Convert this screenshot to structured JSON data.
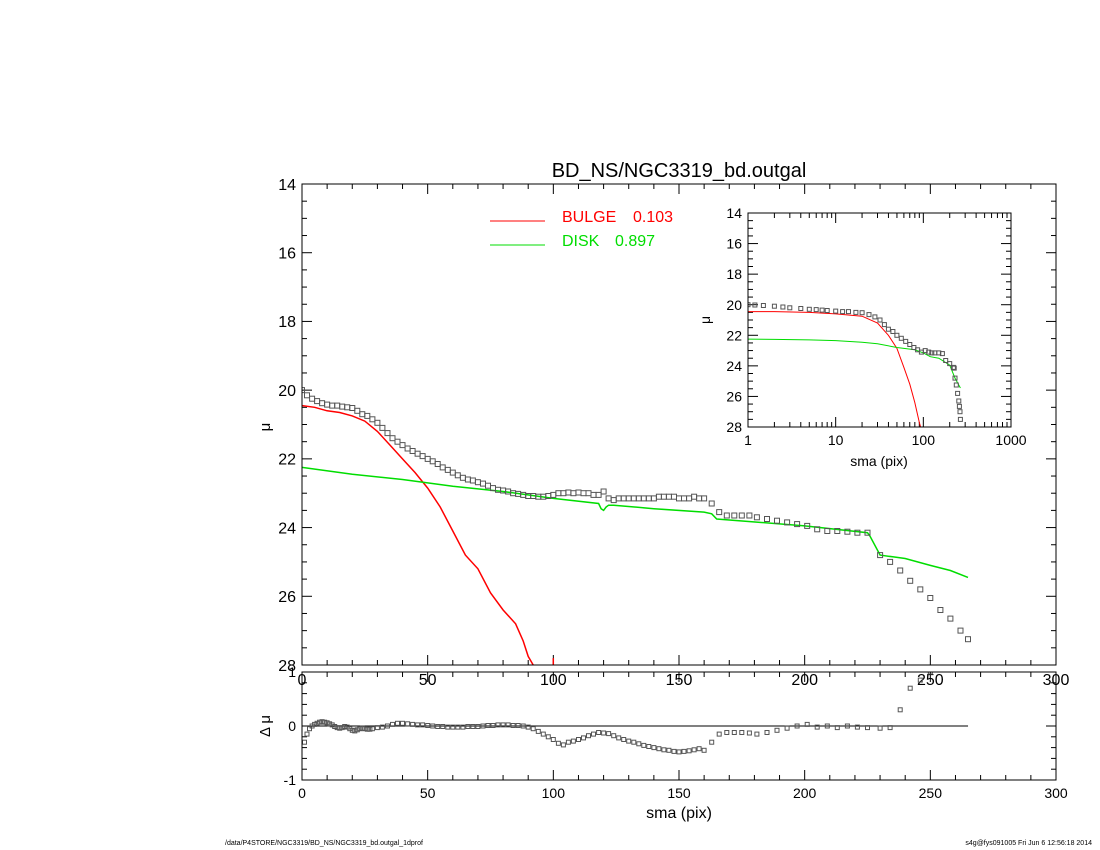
{
  "footer": {
    "left": "/data/P4STORE/NGC3319/BD_NS/NGC3319_bd.outgal_1dprof",
    "right": "s4g@fys091005  Fri Jun  6 12:56:18 2014"
  },
  "chart_data": [
    {
      "type": "line",
      "title": "BD_NS/NGC3319_bd.outgal",
      "xlabel": "sma (pix)",
      "ylabel": "μ",
      "xlim": [
        0,
        300
      ],
      "ylim": [
        28,
        14
      ],
      "x_ticks": [
        0,
        50,
        100,
        150,
        200,
        250,
        300
      ],
      "y_ticks": [
        14,
        16,
        18,
        20,
        22,
        24,
        26,
        28
      ],
      "colors": {
        "bulge": "#ff0000",
        "disk": "#00dd00",
        "data": "#555555"
      },
      "legend": [
        {
          "label": "BULGE",
          "value": "0.103",
          "color": "#ff0000"
        },
        {
          "label": "DISK",
          "value": "0.897",
          "color": "#00dd00"
        }
      ],
      "series": [
        {
          "name": "BULGE",
          "style": "line",
          "x": [
            0,
            5,
            10,
            15,
            20,
            25,
            30,
            35,
            40,
            45,
            50,
            55,
            60,
            65,
            70,
            75,
            80,
            85,
            88,
            90,
            92
          ],
          "y": [
            20.45,
            20.5,
            20.6,
            20.65,
            20.75,
            20.9,
            21.2,
            21.6,
            22.0,
            22.4,
            22.85,
            23.4,
            24.1,
            24.8,
            25.2,
            25.9,
            26.4,
            26.8,
            27.3,
            27.75,
            28.0
          ]
        },
        {
          "name": "BULGE tick",
          "style": "line",
          "x": [
            100,
            100
          ],
          "y": [
            27.8,
            28.0
          ]
        },
        {
          "name": "DISK",
          "style": "line",
          "x": [
            0,
            20,
            40,
            60,
            80,
            100,
            118,
            119,
            120,
            121,
            122,
            124,
            140,
            160,
            163,
            165,
            200,
            225,
            226,
            230,
            235,
            240,
            250,
            258,
            265
          ],
          "y": [
            22.25,
            22.45,
            22.6,
            22.8,
            22.95,
            23.15,
            23.3,
            23.45,
            23.5,
            23.4,
            23.35,
            23.35,
            23.45,
            23.55,
            23.6,
            23.75,
            23.95,
            24.15,
            24.25,
            24.8,
            24.85,
            24.9,
            25.1,
            25.25,
            25.45
          ]
        },
        {
          "name": "data",
          "style": "markers",
          "x": [
            0,
            2,
            4,
            6,
            8,
            10,
            12,
            14,
            16,
            18,
            20,
            22,
            24,
            26,
            28,
            30,
            32,
            34,
            36,
            38,
            40,
            42,
            44,
            46,
            48,
            50,
            52,
            54,
            56,
            58,
            60,
            62,
            64,
            66,
            68,
            70,
            72,
            74,
            76,
            78,
            80,
            82,
            84,
            86,
            88,
            90,
            92,
            94,
            96,
            98,
            100,
            102,
            104,
            106,
            108,
            110,
            112,
            114,
            116,
            118,
            120,
            122,
            124,
            126,
            128,
            130,
            132,
            134,
            136,
            138,
            140,
            142,
            144,
            146,
            148,
            150,
            152,
            154,
            156,
            158,
            160,
            163,
            166,
            169,
            172,
            175,
            178,
            181,
            185,
            189,
            193,
            197,
            201,
            205,
            209,
            213,
            217,
            221,
            225,
            230,
            234,
            238,
            242,
            246,
            250,
            254,
            258,
            262,
            265
          ],
          "y": [
            20.0,
            20.15,
            20.25,
            20.32,
            20.38,
            20.42,
            20.45,
            20.45,
            20.48,
            20.5,
            20.52,
            20.6,
            20.7,
            20.75,
            20.85,
            20.95,
            21.1,
            21.25,
            21.4,
            21.5,
            21.6,
            21.7,
            21.77,
            21.85,
            21.92,
            22.0,
            22.07,
            22.15,
            22.25,
            22.32,
            22.4,
            22.48,
            22.55,
            22.6,
            22.63,
            22.68,
            22.72,
            22.78,
            22.85,
            22.9,
            22.92,
            22.95,
            23.0,
            23.02,
            23.05,
            23.08,
            23.08,
            23.1,
            23.1,
            23.08,
            23.05,
            23.0,
            23.0,
            22.98,
            23.0,
            22.98,
            23.0,
            23.0,
            23.05,
            23.05,
            22.95,
            23.15,
            23.2,
            23.15,
            23.15,
            23.15,
            23.15,
            23.15,
            23.15,
            23.15,
            23.15,
            23.1,
            23.1,
            23.1,
            23.1,
            23.15,
            23.15,
            23.15,
            23.1,
            23.15,
            23.15,
            23.3,
            23.55,
            23.65,
            23.65,
            23.65,
            23.65,
            23.7,
            23.75,
            23.8,
            23.85,
            23.9,
            23.95,
            24.05,
            24.1,
            24.1,
            24.12,
            24.15,
            24.15,
            24.8,
            25.0,
            25.25,
            25.55,
            25.8,
            26.05,
            26.4,
            26.65,
            27.0,
            27.25
          ]
        }
      ]
    },
    {
      "type": "line",
      "xlabel": "sma (pix)",
      "ylabel": "μ",
      "x_scale": "log",
      "xlim": [
        1,
        1000
      ],
      "ylim": [
        28,
        14
      ],
      "x_ticks": [
        1,
        10,
        100,
        1000
      ],
      "y_ticks": [
        14,
        16,
        18,
        20,
        22,
        24,
        26,
        28
      ],
      "series": [
        {
          "name": "BULGE",
          "style": "line",
          "x": [
            1,
            2,
            5,
            10,
            20,
            30,
            40,
            50,
            60,
            70,
            80,
            90,
            93
          ],
          "y": [
            20.45,
            20.45,
            20.5,
            20.6,
            20.75,
            21.2,
            22.0,
            22.85,
            24.1,
            25.2,
            26.4,
            27.7,
            28.0
          ]
        },
        {
          "name": "DISK",
          "style": "line",
          "x": [
            1,
            2,
            5,
            10,
            20,
            30,
            50,
            80,
            100,
            120,
            150,
            200,
            230,
            265
          ],
          "y": [
            22.25,
            22.27,
            22.3,
            22.35,
            22.45,
            22.55,
            22.8,
            22.95,
            23.15,
            23.4,
            23.5,
            23.95,
            24.8,
            25.45
          ]
        },
        {
          "name": "data",
          "style": "markers",
          "x": [
            1,
            1.2,
            1.5,
            2,
            2.5,
            3,
            4,
            5,
            6,
            7,
            8,
            10,
            12,
            14,
            17,
            20,
            24,
            28,
            32,
            36,
            40,
            45,
            50,
            56,
            63,
            70,
            78,
            86,
            95,
            105,
            115,
            125,
            135,
            150,
            165,
            180,
            200,
            220,
            225,
            230,
            238,
            246,
            254,
            258,
            262,
            265
          ],
          "y": [
            20.0,
            20.02,
            20.05,
            20.1,
            20.15,
            20.2,
            20.25,
            20.3,
            20.32,
            20.35,
            20.38,
            20.42,
            20.45,
            20.45,
            20.5,
            20.52,
            20.65,
            20.8,
            21.0,
            21.3,
            21.6,
            21.75,
            22.0,
            22.2,
            22.4,
            22.6,
            22.8,
            22.95,
            23.1,
            23.0,
            23.1,
            23.15,
            23.15,
            23.15,
            23.2,
            23.65,
            23.85,
            24.1,
            24.15,
            24.8,
            25.25,
            25.8,
            26.3,
            26.65,
            27.0,
            27.5
          ]
        }
      ]
    },
    {
      "type": "scatter",
      "xlabel": "sma (pix)",
      "ylabel": "Δ μ",
      "xlim": [
        0,
        300
      ],
      "ylim": [
        -1,
        1
      ],
      "x_ticks": [
        0,
        50,
        100,
        150,
        200,
        250,
        300
      ],
      "y_ticks": [
        -1,
        0,
        1
      ],
      "reference_line": 0,
      "series": [
        {
          "name": "residual",
          "style": "markers",
          "x": [
            1,
            2,
            3,
            4,
            5,
            6,
            7,
            8,
            9,
            10,
            11,
            12,
            13,
            14,
            15,
            16,
            17,
            18,
            19,
            20,
            21,
            22,
            23,
            24,
            25,
            26,
            27,
            28,
            30,
            32,
            34,
            36,
            38,
            40,
            42,
            44,
            46,
            48,
            50,
            52,
            54,
            56,
            58,
            60,
            62,
            64,
            66,
            68,
            70,
            72,
            74,
            76,
            78,
            80,
            82,
            84,
            86,
            88,
            90,
            92,
            94,
            96,
            98,
            100,
            102,
            104,
            106,
            108,
            110,
            112,
            114,
            116,
            118,
            120,
            122,
            124,
            126,
            128,
            130,
            132,
            134,
            136,
            138,
            140,
            142,
            144,
            146,
            148,
            150,
            152,
            154,
            156,
            158,
            160,
            163,
            166,
            169,
            172,
            175,
            178,
            181,
            185,
            189,
            193,
            197,
            201,
            205,
            209,
            213,
            217,
            221,
            225,
            230,
            234,
            238,
            242,
            246,
            250,
            254
          ],
          "y": [
            -0.3,
            -0.15,
            -0.05,
            0.0,
            0.03,
            0.05,
            0.07,
            0.08,
            0.07,
            0.06,
            0.04,
            0.02,
            -0.01,
            -0.03,
            -0.04,
            -0.03,
            -0.01,
            -0.02,
            -0.05,
            -0.08,
            -0.09,
            -0.07,
            -0.05,
            -0.04,
            -0.05,
            -0.06,
            -0.06,
            -0.05,
            -0.03,
            -0.02,
            0.0,
            0.03,
            0.05,
            0.05,
            0.04,
            0.03,
            0.02,
            0.02,
            0.01,
            0.0,
            -0.01,
            -0.01,
            -0.02,
            -0.02,
            -0.02,
            -0.02,
            -0.01,
            -0.01,
            -0.01,
            0.0,
            0.01,
            0.01,
            0.02,
            0.02,
            0.02,
            0.01,
            0.01,
            0.0,
            -0.02,
            -0.05,
            -0.1,
            -0.15,
            -0.2,
            -0.25,
            -0.32,
            -0.35,
            -0.3,
            -0.28,
            -0.25,
            -0.22,
            -0.18,
            -0.15,
            -0.12,
            -0.13,
            -0.14,
            -0.18,
            -0.22,
            -0.25,
            -0.28,
            -0.3,
            -0.33,
            -0.36,
            -0.38,
            -0.4,
            -0.42,
            -0.44,
            -0.45,
            -0.47,
            -0.48,
            -0.47,
            -0.46,
            -0.44,
            -0.42,
            -0.45,
            -0.3,
            -0.15,
            -0.12,
            -0.12,
            -0.12,
            -0.13,
            -0.15,
            -0.12,
            -0.08,
            -0.04,
            0.0,
            0.03,
            -0.02,
            0.0,
            -0.03,
            0.0,
            -0.02,
            -0.03,
            -0.04,
            -0.03,
            0.3,
            0.7,
            0.85,
            1.0,
            1.05
          ]
        }
      ]
    }
  ]
}
